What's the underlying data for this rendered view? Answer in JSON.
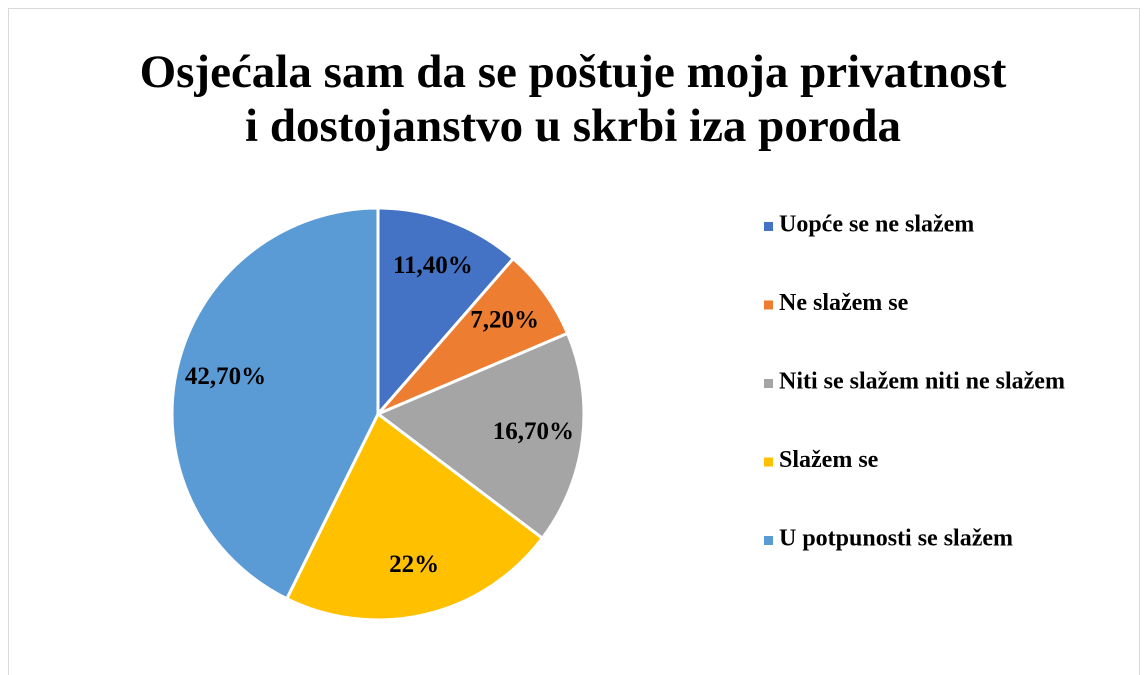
{
  "chart_data": {
    "type": "pie",
    "title": [
      "Osjećala sam da se poštuje moja privatnost",
      "i dostojanstvo u skrbi iza poroda"
    ],
    "categories": [
      "Uopće se ne slažem",
      "Ne slažem se",
      "Niti se slažem niti ne slažem",
      "Slažem se",
      "U potpunosti se slažem"
    ],
    "values": [
      11.4,
      7.2,
      16.7,
      22,
      42.7
    ],
    "value_labels": [
      "11,40%",
      "7,20%",
      "16,70%",
      "22%",
      "42,70%"
    ],
    "colors": [
      "#4472c4",
      "#ed7d31",
      "#a5a5a5",
      "#ffc000",
      "#5b9bd5"
    ],
    "legend": "right"
  }
}
